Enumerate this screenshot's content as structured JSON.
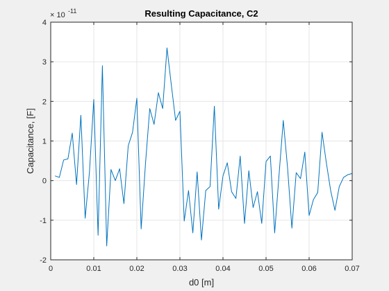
{
  "figure": {
    "background": "#f0f0f0",
    "axes_background": "#ffffff",
    "line_color": "#0072bd",
    "grid_color": "#e6e6e6",
    "axis_color": "#262626"
  },
  "chart_data": {
    "type": "line",
    "title": "Resulting Capacitance, C2",
    "xlabel": "d0 [m]",
    "ylabel": "Capacitance, [F]",
    "y_exponent_base": "× 10",
    "y_exponent_power": "-11",
    "xlim": [
      0,
      0.07
    ],
    "ylim": [
      -2,
      4
    ],
    "grid": true,
    "xticks": [
      0,
      0.01,
      0.02,
      0.03,
      0.04,
      0.05,
      0.06,
      0.07
    ],
    "xtick_labels": [
      "0",
      "0.01",
      "0.02",
      "0.03",
      "0.04",
      "0.05",
      "0.06",
      "0.07"
    ],
    "yticks": [
      -2,
      -1,
      0,
      1,
      2,
      3,
      4
    ],
    "ytick_labels": [
      "-2",
      "-1",
      "0",
      "1",
      "2",
      "3",
      "4"
    ],
    "series": [
      {
        "x": [
          0.001,
          0.002,
          0.003,
          0.004,
          0.005,
          0.006,
          0.007,
          0.008,
          0.009,
          0.01,
          0.011,
          0.012,
          0.013,
          0.014,
          0.015,
          0.016,
          0.017,
          0.018,
          0.019,
          0.02,
          0.021,
          0.022,
          0.023,
          0.024,
          0.025,
          0.026,
          0.027,
          0.028,
          0.029,
          0.03,
          0.031,
          0.032,
          0.033,
          0.034,
          0.035,
          0.036,
          0.037,
          0.038,
          0.039,
          0.04,
          0.041,
          0.042,
          0.043,
          0.044,
          0.045,
          0.046,
          0.047,
          0.048,
          0.049,
          0.05,
          0.051,
          0.052,
          0.053,
          0.054,
          0.055,
          0.056,
          0.057,
          0.058,
          0.059,
          0.06,
          0.061,
          0.062,
          0.063,
          0.064,
          0.065,
          0.066,
          0.067,
          0.068,
          0.069,
          0.07
        ],
        "y": [
          0.12,
          0.08,
          0.52,
          0.55,
          1.2,
          -0.1,
          1.65,
          -0.95,
          0.22,
          2.05,
          -1.38,
          2.9,
          -1.65,
          0.28,
          0.0,
          0.3,
          -0.58,
          0.88,
          1.22,
          2.08,
          -1.22,
          0.42,
          1.82,
          1.42,
          2.22,
          1.82,
          3.35,
          2.42,
          1.52,
          1.75,
          -1.02,
          -0.25,
          -1.32,
          0.22,
          -1.5,
          -0.25,
          -0.15,
          1.88,
          -0.72,
          0.12,
          0.45,
          -0.28,
          -0.45,
          0.62,
          -1.08,
          0.25,
          -0.68,
          -0.28,
          -1.08,
          0.48,
          0.62,
          -1.32,
          0.12,
          1.52,
          0.32,
          -1.2,
          0.2,
          0.05,
          0.72,
          -0.88,
          -0.48,
          -0.3,
          1.22,
          0.45,
          -0.25,
          -0.75,
          -0.15,
          0.08,
          0.15,
          0.18
        ]
      }
    ]
  }
}
